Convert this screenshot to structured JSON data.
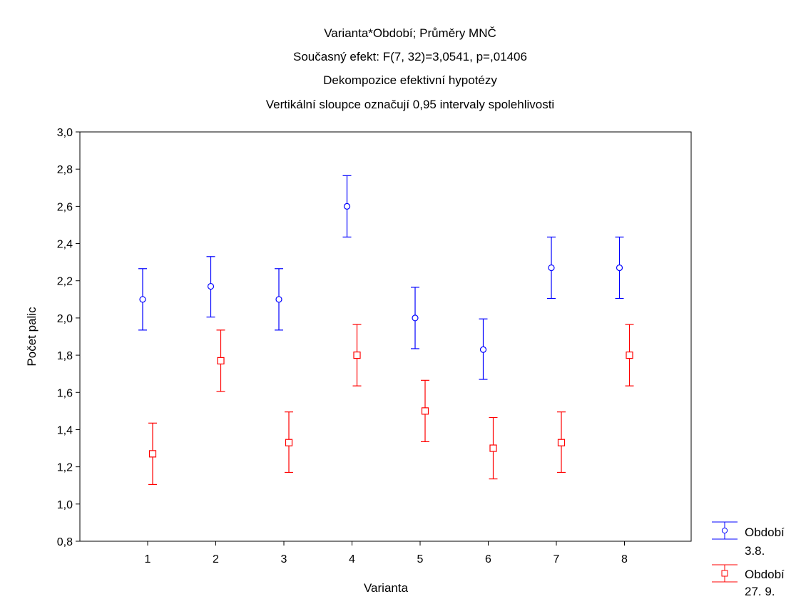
{
  "chart_data": {
    "type": "scatter",
    "title_lines": [
      "Varianta*Období; Průměry MNČ",
      "Současný efekt: F(7, 32)=3,0541, p=,01406",
      "Dekompozice efektivní hypotézy",
      "Vertikální sloupce označují 0,95 intervaly spolehlivosti"
    ],
    "xlabel": "Varianta",
    "ylabel": "Počet palic",
    "categories": [
      "1",
      "2",
      "3",
      "4",
      "5",
      "6",
      "7",
      "8"
    ],
    "ylim": [
      0.8,
      3.0
    ],
    "yticks": [
      0.8,
      1.0,
      1.2,
      1.4,
      1.6,
      1.8,
      2.0,
      2.2,
      2.4,
      2.6,
      2.8,
      3.0
    ],
    "ytick_labels": [
      "0,8",
      "1,0",
      "1,2",
      "1,4",
      "1,6",
      "1,8",
      "2,0",
      "2,2",
      "2,4",
      "2,6",
      "2,8",
      "3,0"
    ],
    "grid": false,
    "legend_position": "bottom-right, outside plot",
    "series": [
      {
        "name": "Období 3.8.",
        "legend_lines": [
          "Období",
          "3.8."
        ],
        "color": "#0000ff",
        "marker": "circle",
        "values": [
          2.1,
          2.17,
          2.1,
          2.6,
          2.0,
          1.83,
          2.27,
          2.27
        ],
        "ci_lower": [
          1.935,
          2.005,
          1.935,
          2.435,
          1.835,
          1.67,
          2.105,
          2.105
        ],
        "ci_upper": [
          2.265,
          2.33,
          2.265,
          2.765,
          2.165,
          1.995,
          2.435,
          2.435
        ]
      },
      {
        "name": "Období 27. 9.",
        "legend_lines": [
          "Období",
          "27. 9."
        ],
        "color": "#ff0000",
        "marker": "square",
        "values": [
          1.27,
          1.77,
          1.33,
          1.8,
          1.5,
          1.3,
          1.33,
          1.8
        ],
        "ci_lower": [
          1.105,
          1.605,
          1.17,
          1.635,
          1.335,
          1.135,
          1.17,
          1.635
        ],
        "ci_upper": [
          1.435,
          1.935,
          1.495,
          1.965,
          1.665,
          1.465,
          1.495,
          1.965
        ]
      }
    ]
  }
}
